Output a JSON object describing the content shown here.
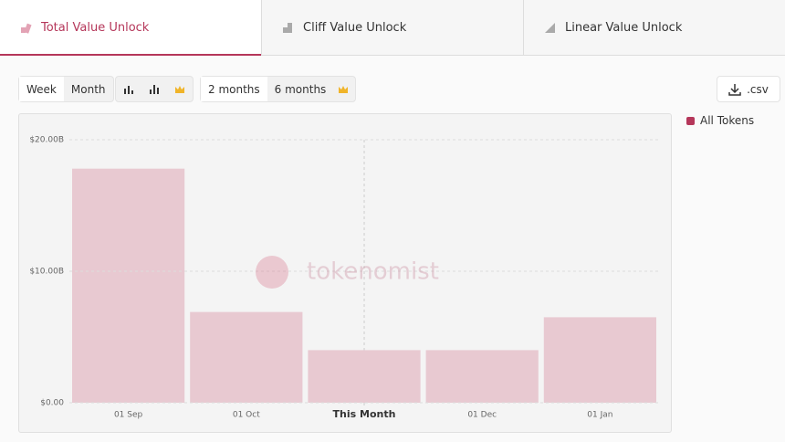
{
  "tabs": [
    "Total Value Unlock",
    "Cliff Value Unlock",
    "Linear Value Unlock"
  ],
  "controls": {
    "period": [
      "Week",
      "Month"
    ],
    "range": [
      "2 months",
      "6 months"
    ],
    "download": ".csv"
  },
  "watermark": "tokenomist",
  "chart_data": {
    "type": "bar",
    "categories": [
      "01 Sep",
      "01 Oct",
      "This Month",
      "01 Dec",
      "01 Jan"
    ],
    "series": [
      {
        "name": "All Tokens",
        "color": "#e8c9d1",
        "legend_color": "#b5375a",
        "values": [
          17.8,
          6.9,
          4.0,
          4.0,
          6.5
        ]
      }
    ],
    "ylim": [
      0,
      20
    ],
    "yticks": [
      {
        "value": 0,
        "label": "$0.00"
      },
      {
        "value": 10,
        "label": "$10.00B"
      },
      {
        "value": 20,
        "label": "$20.00B"
      }
    ],
    "grid": true
  }
}
